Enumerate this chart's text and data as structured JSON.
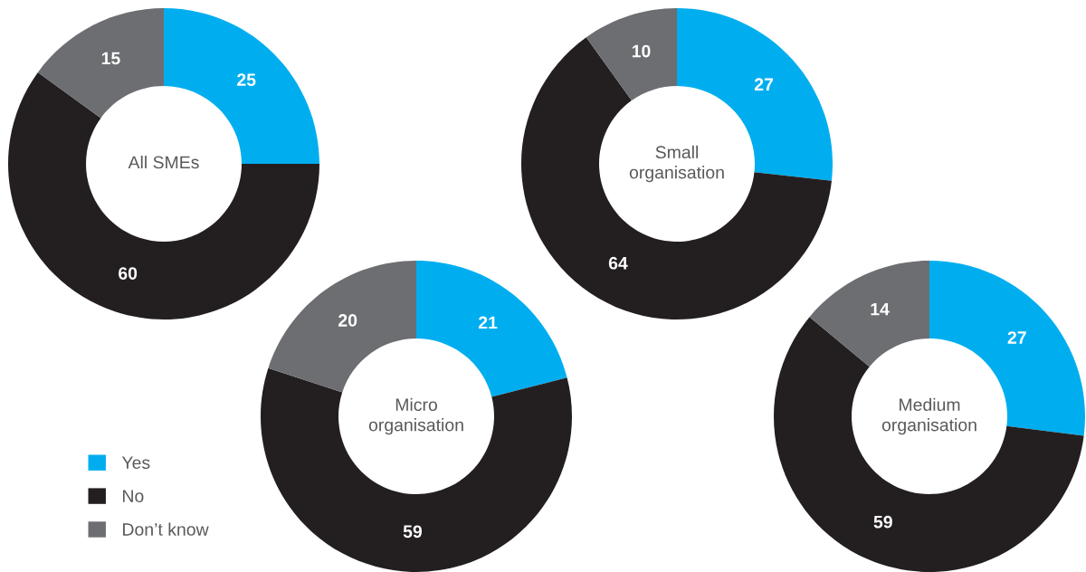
{
  "chart_data": [
    {
      "type": "donut",
      "title": "All SMEs",
      "categories": [
        "Yes",
        "No",
        "Don’t know"
      ],
      "values": [
        25,
        60,
        15
      ],
      "colors": [
        "#00aeef",
        "#231f20",
        "#6d6e71"
      ],
      "data_labels": true,
      "legend": "bottom"
    },
    {
      "type": "donut",
      "title": "Small organisation",
      "categories": [
        null,
        null,
        null
      ],
      "values": [
        27,
        64,
        10
      ],
      "colors": [
        "#00aeef",
        "#231f20",
        "#6d6e71"
      ],
      "data_labels": true
    },
    {
      "type": "donut",
      "title": "Micro organisation",
      "categories": [
        null,
        null,
        null
      ],
      "values": [
        21,
        59,
        20
      ],
      "colors": [
        "#00aeef",
        "#231f20",
        "#6d6e71"
      ],
      "data_labels": true
    },
    {
      "type": "donut",
      "title": "Medium organisation",
      "categories": [
        null,
        null,
        null
      ],
      "values": [
        27,
        59,
        14
      ],
      "colors": [
        "#00aeef",
        "#231f20",
        "#6d6e71"
      ],
      "data_labels": true
    }
  ]
}
